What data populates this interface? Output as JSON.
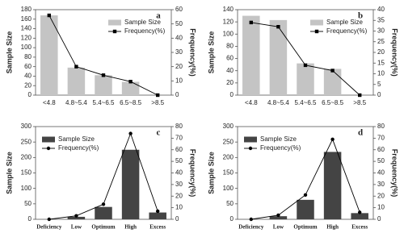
{
  "chart_data": [
    {
      "type": "combo",
      "label": "a",
      "y_label": "Sample Size",
      "y2_label": "Frequency(%)",
      "legend": "upper right",
      "marker": "square",
      "categories": [
        "<4.8",
        "4.8~5.4",
        "5.4~6.5",
        "6.5~8.5",
        ">8.5"
      ],
      "series": [
        {
          "name": "Sample Size",
          "type": "bar",
          "color": "#c4c4c4",
          "values": [
            168,
            58,
            42,
            28,
            0
          ]
        },
        {
          "name": "Frequency(%)",
          "type": "line",
          "axis": "y2",
          "color": "#000000",
          "values": [
            56,
            20,
            14,
            9.5,
            0
          ]
        }
      ],
      "ylim": [
        0,
        180
      ],
      "yticks": [
        0,
        20,
        40,
        60,
        80,
        100,
        120,
        140,
        160,
        180
      ],
      "y2lim": [
        0,
        60
      ],
      "y2ticks": [
        0,
        10,
        20,
        30,
        40,
        50,
        60
      ]
    },
    {
      "type": "combo",
      "label": "b",
      "y_label": "Sample Size",
      "y2_label": "Frequency(%)",
      "legend": "upper right",
      "marker": "square",
      "categories": [
        "<4.8",
        "4.8~5.4",
        "5.4~6.5",
        "6.5~8.5",
        ">8.5"
      ],
      "series": [
        {
          "name": "Sample Size",
          "type": "bar",
          "color": "#c4c4c4",
          "values": [
            130,
            123,
            52,
            43,
            0
          ]
        },
        {
          "name": "Frequency(%)",
          "type": "line",
          "axis": "y2",
          "color": "#000000",
          "values": [
            34,
            32,
            14,
            11.5,
            0
          ]
        }
      ],
      "ylim": [
        0,
        140
      ],
      "yticks": [
        0,
        20,
        40,
        60,
        80,
        100,
        120,
        140
      ],
      "y2lim": [
        0,
        40
      ],
      "y2ticks": [
        0,
        5,
        10,
        15,
        20,
        25,
        30,
        35,
        40
      ]
    },
    {
      "type": "combo",
      "label": "c",
      "y_label": "Sample Size",
      "y2_label": "Frequency(%)",
      "legend": "upper left",
      "marker": "circle",
      "categories": [
        "Deficiency",
        "Low",
        "Optimum",
        "High",
        "Excess"
      ],
      "series": [
        {
          "name": "Sample Size",
          "type": "bar",
          "color": "#444444",
          "values": [
            0,
            8,
            40,
            225,
            22
          ]
        },
        {
          "name": "Frequency(%)",
          "type": "line",
          "axis": "y2",
          "color": "#000000",
          "values": [
            0,
            3,
            13,
            74,
            7
          ]
        }
      ],
      "ylim": [
        0,
        300
      ],
      "yticks": [
        0,
        50,
        100,
        150,
        200,
        250,
        300
      ],
      "y2lim": [
        0,
        80
      ],
      "y2ticks": [
        0,
        10,
        20,
        30,
        40,
        50,
        60,
        70,
        80
      ]
    },
    {
      "type": "combo",
      "label": "d",
      "y_label": "Sample Size",
      "y2_label": "Frequency(%)",
      "legend": "upper left",
      "marker": "circle",
      "categories": [
        "Deficiency",
        "Low",
        "Optimum",
        "High",
        "Excess"
      ],
      "series": [
        {
          "name": "Sample Size",
          "type": "bar",
          "color": "#444444",
          "values": [
            0,
            10,
            63,
            218,
            20
          ]
        },
        {
          "name": "Frequency(%)",
          "type": "line",
          "axis": "y2",
          "color": "#000000",
          "values": [
            0,
            3.5,
            21,
            69,
            6
          ]
        }
      ],
      "ylim": [
        0,
        300
      ],
      "yticks": [
        0,
        50,
        100,
        150,
        200,
        250,
        300
      ],
      "y2lim": [
        0,
        80
      ],
      "y2ticks": [
        0,
        10,
        20,
        30,
        40,
        50,
        60,
        70,
        80
      ]
    }
  ]
}
